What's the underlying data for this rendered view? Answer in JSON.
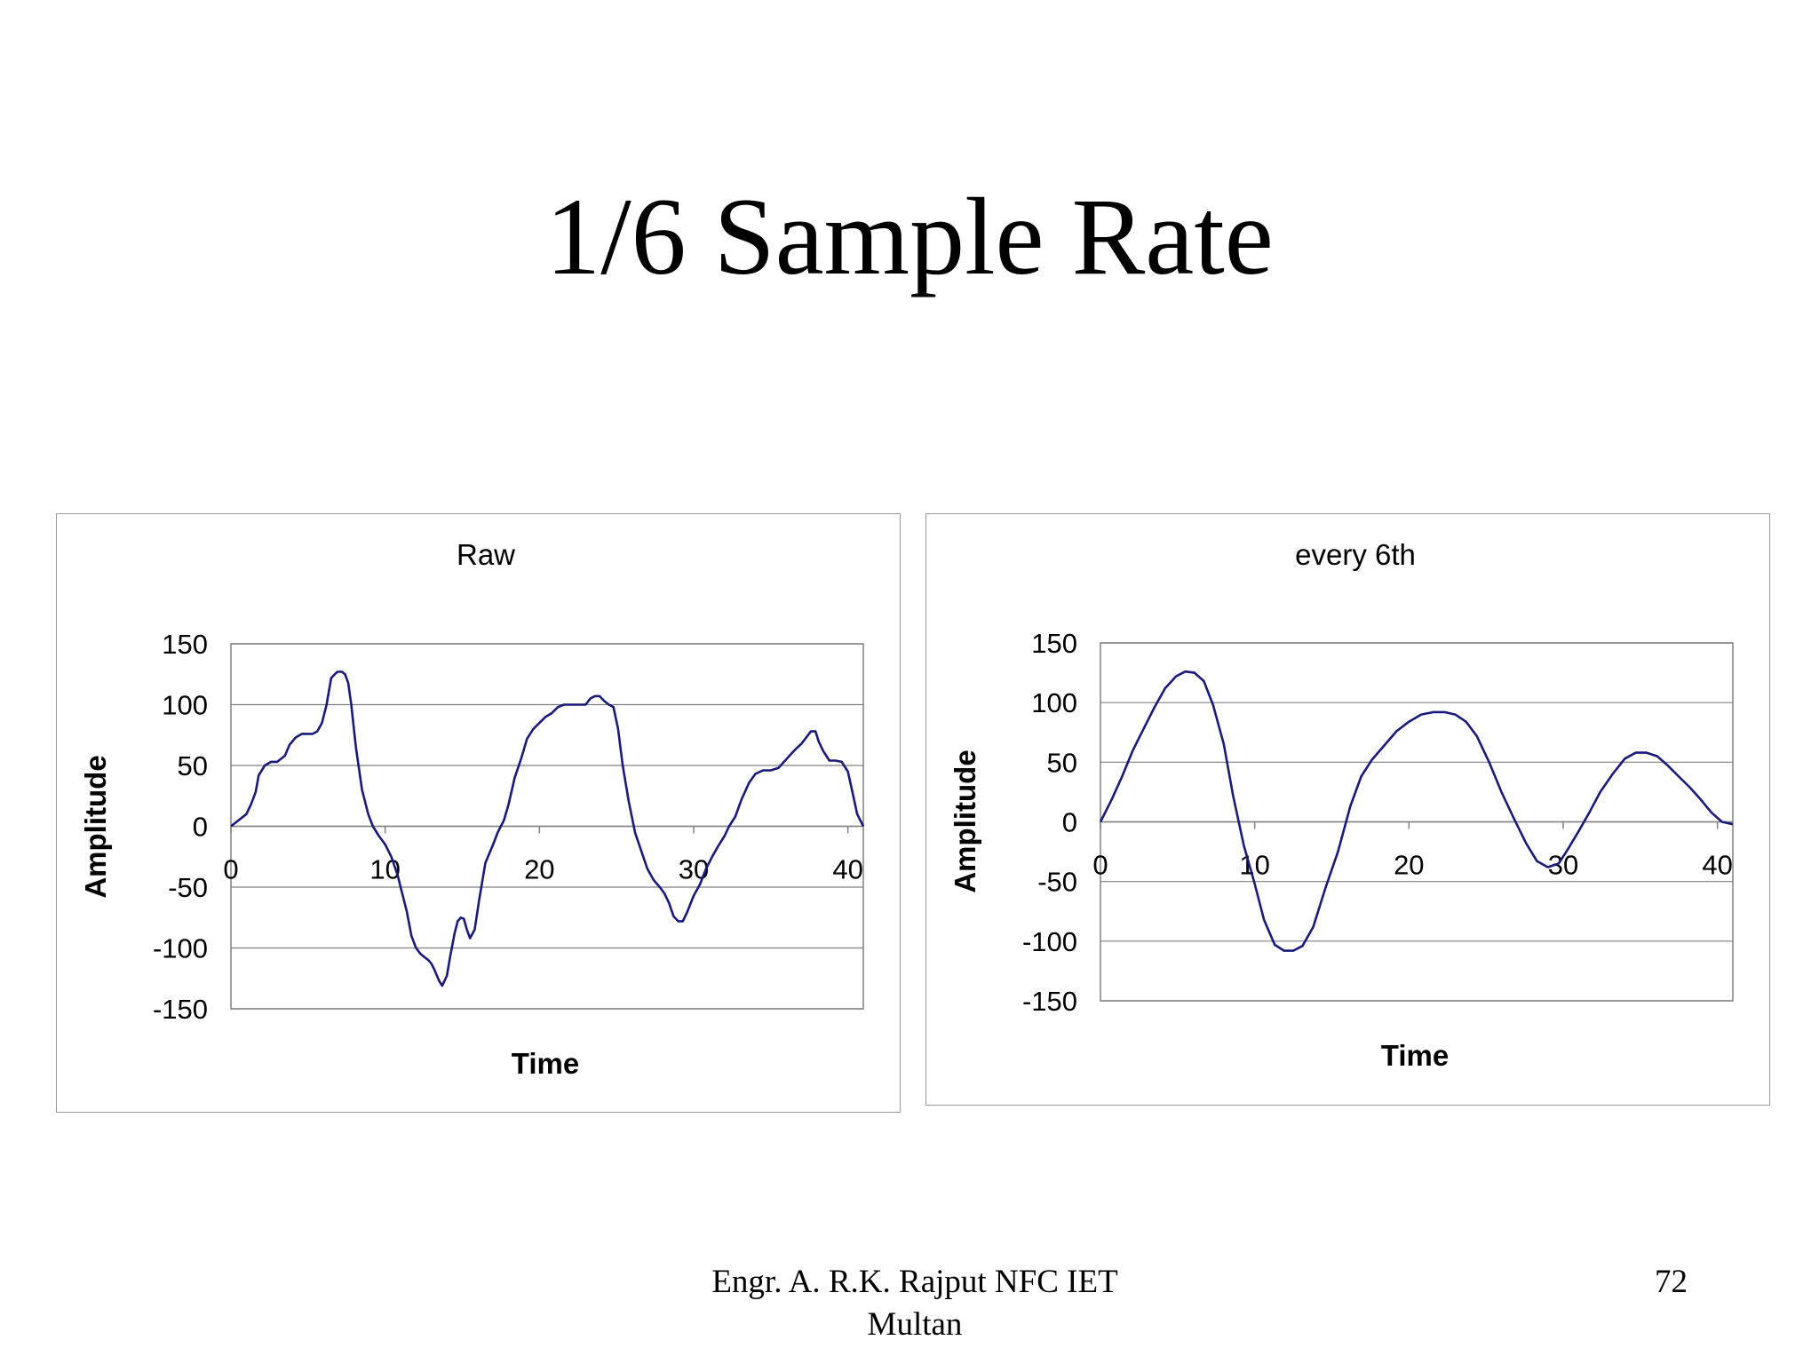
{
  "slide": {
    "title": "1/6 Sample Rate",
    "footer_author_line1": "Engr. A. R.K. Rajput NFC IET",
    "footer_author_line2": "Multan",
    "page_number": "72"
  },
  "chart_data": [
    {
      "type": "line",
      "title": "Raw",
      "xlabel": "Time",
      "ylabel": "Amplitude",
      "xlim": [
        0,
        41
      ],
      "ylim": [
        -150,
        150
      ],
      "xticks": [
        "0",
        "10",
        "20",
        "30",
        "40"
      ],
      "yticks": [
        "150",
        "100",
        "50",
        "0",
        "-50",
        "-100",
        "-150"
      ],
      "grid": "horizontal",
      "line_color": "#1a1a7a",
      "series": [
        {
          "x": [
            0,
            0.5,
            1,
            1.3,
            1.6,
            1.8,
            2.2,
            2.6,
            3,
            3.2,
            3.5,
            3.8,
            4.2,
            4.6,
            5,
            5.3,
            5.6,
            5.9,
            6.2,
            6.5,
            6.9,
            7.2,
            7.4,
            7.6,
            7.8,
            8.1,
            8.5,
            8.9,
            9.2,
            9.6,
            10,
            10.4,
            10.8,
            11.1,
            11.4,
            11.7,
            12,
            12.3,
            12.6,
            12.8,
            13,
            13.2,
            13.5,
            13.7,
            14,
            14.2,
            14.5,
            14.7,
            14.9,
            15.1,
            15.3,
            15.5,
            15.8,
            16.1,
            16.5,
            17,
            17.3,
            17.7,
            18,
            18.4,
            18.8,
            19.2,
            19.6,
            20,
            20.4,
            20.8,
            21.2,
            21.6,
            22,
            22.3,
            22.6,
            23,
            23.3,
            23.6,
            23.9,
            24.2,
            24.5,
            24.8,
            25.1,
            25.4,
            25.8,
            26.2,
            26.6,
            27,
            27.4,
            27.8,
            28.1,
            28.4,
            28.7,
            29,
            29.3,
            29.6,
            30,
            30.4,
            30.8,
            31.2,
            31.6,
            32,
            32.3,
            32.7,
            33.1,
            33.6,
            34,
            34.5,
            35,
            35.5,
            36,
            36.5,
            37,
            37.3,
            37.6,
            37.9,
            38.1,
            38.4,
            38.8,
            39.2,
            39.6,
            40,
            40.3,
            40.6,
            41
          ],
          "y": [
            0,
            5,
            10,
            18,
            28,
            42,
            50,
            53,
            53,
            55,
            58,
            67,
            73,
            76,
            76,
            76,
            78,
            85,
            100,
            122,
            127,
            127,
            125,
            118,
            100,
            65,
            30,
            10,
            0,
            -8,
            -15,
            -25,
            -40,
            -55,
            -70,
            -90,
            -100,
            -105,
            -108,
            -110,
            -113,
            -118,
            -127,
            -131,
            -123,
            -108,
            -88,
            -78,
            -75,
            -76,
            -85,
            -92,
            -85,
            -60,
            -30,
            -15,
            -5,
            5,
            18,
            40,
            55,
            72,
            80,
            85,
            90,
            93,
            98,
            100,
            100,
            100,
            100,
            100,
            105,
            107,
            107,
            103,
            100,
            98,
            80,
            50,
            20,
            -5,
            -20,
            -35,
            -44,
            -50,
            -55,
            -63,
            -74,
            -78,
            -78,
            -70,
            -57,
            -48,
            -35,
            -25,
            -16,
            -8,
            0,
            8,
            22,
            36,
            43,
            46,
            46,
            48,
            55,
            62,
            68,
            73,
            78,
            78,
            70,
            62,
            54,
            54,
            53,
            45,
            28,
            10,
            0
          ]
        }
      ]
    },
    {
      "type": "line",
      "title": "every 6th",
      "xlabel": "Time",
      "ylabel": "Amplitude",
      "xlim": [
        0,
        41
      ],
      "ylim": [
        -150,
        150
      ],
      "xticks": [
        "0",
        "10",
        "20",
        "30",
        "40"
      ],
      "yticks": [
        "150",
        "100",
        "50",
        "0",
        "-50",
        "-100",
        "-150"
      ],
      "grid": "horizontal",
      "line_color": "#1a1a7a",
      "series": [
        {
          "x": [
            0,
            0.7,
            1.4,
            2.1,
            2.8,
            3.5,
            4.2,
            4.9,
            5.5,
            6.1,
            6.7,
            7.3,
            8,
            8.6,
            9.3,
            10,
            10.6,
            11.3,
            11.9,
            12.5,
            13.1,
            13.8,
            14.6,
            15.4,
            16.2,
            16.9,
            17.6,
            18.4,
            19.2,
            20,
            20.8,
            21.6,
            22.3,
            23,
            23.7,
            24.4,
            25.2,
            26,
            26.8,
            27.6,
            28.3,
            29,
            29.7,
            30.3,
            31,
            31.7,
            32.4,
            33.2,
            34,
            34.7,
            35.4,
            36.1,
            36.8,
            37.5,
            38.2,
            38.9,
            39.6,
            40.3,
            41
          ],
          "y": [
            0,
            18,
            38,
            60,
            78,
            96,
            112,
            122,
            126,
            125,
            118,
            98,
            65,
            22,
            -20,
            -52,
            -82,
            -103,
            -108,
            -108,
            -104,
            -88,
            -55,
            -25,
            13,
            38,
            52,
            64,
            76,
            84,
            90,
            92,
            92,
            90,
            84,
            72,
            50,
            25,
            3,
            -18,
            -33,
            -38,
            -35,
            -23,
            -8,
            8,
            25,
            40,
            53,
            58,
            58,
            55,
            47,
            38,
            29,
            19,
            8,
            0,
            -2
          ]
        }
      ]
    }
  ]
}
